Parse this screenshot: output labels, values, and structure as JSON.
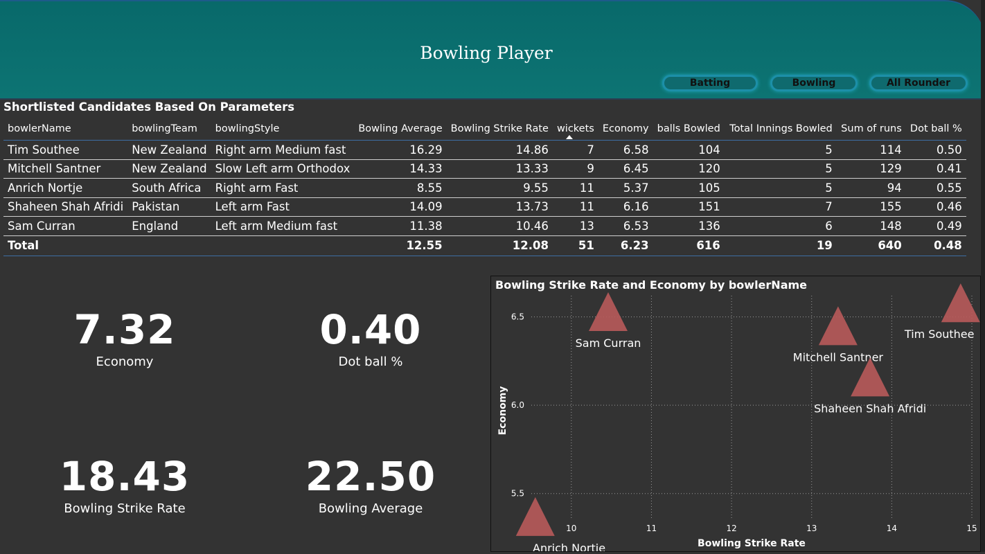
{
  "header": {
    "title": "Bowling Player",
    "nav": [
      {
        "label": "Batting"
      },
      {
        "label": "Bowling"
      },
      {
        "label": "All Rounder"
      }
    ]
  },
  "table": {
    "title": "Shortlisted Candidates Based On Parameters",
    "columns": [
      "bowlerName",
      "bowlingTeam",
      "bowlingStyle",
      "Bowling Average",
      "Bowling Strike Rate",
      "wickets",
      "Economy",
      "balls Bowled",
      "Total Innings Bowled",
      "Sum of runs",
      "Dot ball %"
    ],
    "sorted_column": "wickets",
    "rows": [
      [
        "Tim Southee",
        "New Zealand",
        "Right arm Medium fast",
        "16.29",
        "14.86",
        "7",
        "6.58",
        "104",
        "5",
        "114",
        "0.50"
      ],
      [
        "Mitchell Santner",
        "New Zealand",
        "Slow Left arm Orthodox",
        "14.33",
        "13.33",
        "9",
        "6.45",
        "120",
        "5",
        "129",
        "0.41"
      ],
      [
        "Anrich Nortje",
        "South Africa",
        "Right arm Fast",
        "8.55",
        "9.55",
        "11",
        "5.37",
        "105",
        "5",
        "94",
        "0.55"
      ],
      [
        "Shaheen Shah Afridi",
        "Pakistan",
        "Left arm Fast",
        "14.09",
        "13.73",
        "11",
        "6.16",
        "151",
        "7",
        "155",
        "0.46"
      ],
      [
        "Sam Curran",
        "England",
        "Left arm Medium fast",
        "11.38",
        "10.46",
        "13",
        "6.53",
        "136",
        "6",
        "148",
        "0.49"
      ]
    ],
    "total": [
      "Total",
      "",
      "",
      "12.55",
      "12.08",
      "51",
      "6.23",
      "616",
      "19",
      "640",
      "0.48"
    ]
  },
  "kpis": [
    {
      "value": "7.32",
      "label": "Economy"
    },
    {
      "value": "0.40",
      "label": "Dot ball %"
    },
    {
      "value": "18.43",
      "label": "Bowling Strike Rate"
    },
    {
      "value": "22.50",
      "label": "Bowling Average"
    }
  ],
  "chart_data": {
    "type": "scatter",
    "title": "Bowling Strike Rate and Economy by bowlerName",
    "xlabel": "Bowling Strike Rate",
    "ylabel": "Economy",
    "xlim": [
      9.5,
      15
    ],
    "ylim": [
      5.35,
      6.62
    ],
    "xticks": [
      10,
      11,
      12,
      13,
      14,
      15
    ],
    "yticks": [
      5.5,
      6.0,
      6.5
    ],
    "grid": true,
    "marker_color": "#b85a5a",
    "points": [
      {
        "label": "Tim Southee",
        "x": 14.86,
        "y": 6.58
      },
      {
        "label": "Mitchell Santner",
        "x": 13.33,
        "y": 6.45
      },
      {
        "label": "Anrich Nortje",
        "x": 9.55,
        "y": 5.37
      },
      {
        "label": "Shaheen Shah Afridi",
        "x": 13.73,
        "y": 6.16
      },
      {
        "label": "Sam Curran",
        "x": 10.46,
        "y": 6.53
      }
    ]
  }
}
